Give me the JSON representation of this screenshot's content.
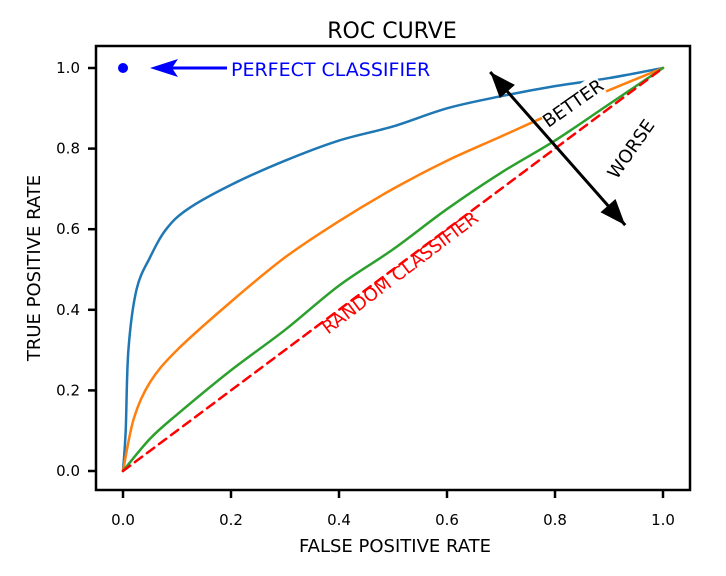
{
  "chart_data": {
    "type": "line",
    "title": "ROC CURVE",
    "xlabel": "FALSE POSITIVE RATE",
    "ylabel": "TRUE POSITIVE RATE",
    "xlim": [
      0,
      1
    ],
    "ylim": [
      0,
      1
    ],
    "xticks": [
      "0.0",
      "0.2",
      "0.4",
      "0.6",
      "0.8",
      "1.0"
    ],
    "yticks": [
      "0.0",
      "0.2",
      "0.4",
      "0.6",
      "0.8",
      "1.0"
    ],
    "grid": false,
    "style": "xkcd",
    "series": [
      {
        "color": "#1f77b4",
        "dash": false,
        "x": [
          0,
          0.005,
          0.01,
          0.025,
          0.05,
          0.08,
          0.12,
          0.2,
          0.3,
          0.4,
          0.5,
          0.6,
          0.7,
          0.8,
          0.9,
          1.0
        ],
        "y": [
          0,
          0.1,
          0.3,
          0.45,
          0.53,
          0.6,
          0.65,
          0.71,
          0.77,
          0.82,
          0.855,
          0.9,
          0.93,
          0.955,
          0.975,
          1.0
        ]
      },
      {
        "color": "#ff7f0e",
        "dash": false,
        "x": [
          0,
          0.02,
          0.05,
          0.1,
          0.2,
          0.3,
          0.4,
          0.5,
          0.6,
          0.7,
          0.8,
          0.9,
          1.0
        ],
        "y": [
          0,
          0.13,
          0.22,
          0.3,
          0.42,
          0.53,
          0.62,
          0.7,
          0.77,
          0.83,
          0.89,
          0.945,
          1.0
        ]
      },
      {
        "color": "#2ca02c",
        "dash": false,
        "x": [
          0,
          0.05,
          0.1,
          0.2,
          0.3,
          0.4,
          0.5,
          0.6,
          0.7,
          0.8,
          0.9,
          1.0
        ],
        "y": [
          0,
          0.08,
          0.14,
          0.25,
          0.35,
          0.46,
          0.55,
          0.65,
          0.74,
          0.82,
          0.91,
          1.0
        ]
      },
      {
        "color": "#ff0000",
        "dash": true,
        "x": [
          0,
          1
        ],
        "y": [
          0,
          1
        ]
      }
    ],
    "points": [
      {
        "x": 0,
        "y": 1,
        "color": "#0000ff"
      }
    ],
    "annotations": {
      "perfect": {
        "text": "PERFECT CLASSIFIER",
        "color": "#0000ff",
        "at": [
          0.2,
          1.0
        ],
        "arrow_to": [
          0.05,
          1.0
        ]
      },
      "random": {
        "text": "RANDOM CLASSIFIER",
        "color": "#ff0000",
        "at": [
          0.52,
          0.48
        ]
      },
      "better": {
        "text": "BETTER",
        "color": "#000000",
        "at": [
          0.84,
          0.9
        ]
      },
      "worse": {
        "text": "WORSE",
        "color": "#000000",
        "at": [
          0.95,
          0.79
        ]
      },
      "double_arrow": {
        "from": [
          0.68,
          0.99
        ],
        "to": [
          0.93,
          0.61
        ]
      }
    }
  }
}
